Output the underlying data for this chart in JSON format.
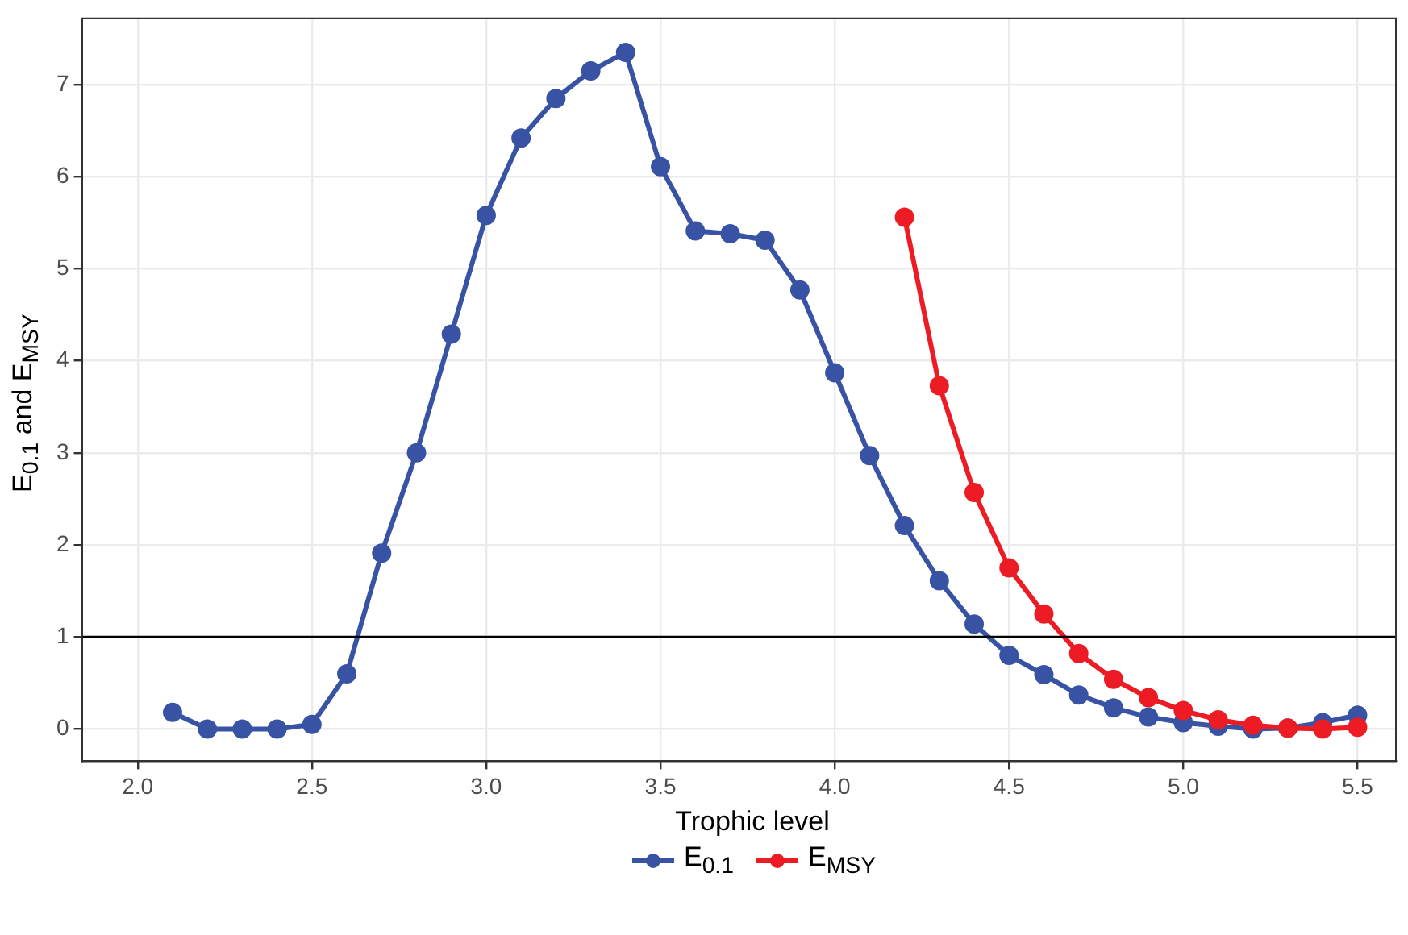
{
  "chart_data": {
    "type": "line",
    "xlabel": "Trophic level",
    "ylabel": "E$_{0.1}$ and E$_{MSY}$",
    "x": [
      2.1,
      2.2,
      2.3,
      2.4,
      2.5,
      2.6,
      2.7,
      2.8,
      2.9,
      3.0,
      3.1,
      3.2,
      3.3,
      3.4,
      3.5,
      3.6,
      3.7,
      3.8,
      3.9,
      4.0,
      4.1,
      4.2,
      4.3,
      4.4,
      4.5,
      4.6,
      4.7,
      4.8,
      4.9,
      5.0,
      5.1,
      5.2,
      5.3,
      5.4,
      5.5
    ],
    "series": [
      {
        "name": "E$_{0.1}$",
        "color": "#3953a4",
        "values": [
          0.18,
          0,
          0,
          0,
          0.05,
          0.6,
          1.91,
          3.0,
          4.29,
          5.58,
          6.42,
          6.85,
          7.15,
          7.35,
          6.11,
          5.41,
          5.38,
          5.31,
          4.77,
          3.87,
          2.97,
          2.21,
          1.61,
          1.14,
          0.8,
          0.59,
          0.37,
          0.23,
          0.13,
          0.07,
          0.03,
          0,
          0.01,
          0.07,
          0.15
        ]
      },
      {
        "name": "E$_{MSY}$",
        "color": "#ed1c24",
        "x": [
          4.2,
          4.3,
          4.4,
          4.5,
          4.6,
          4.7,
          4.8,
          4.9,
          5.0,
          5.1,
          5.2,
          5.3,
          5.4,
          5.5
        ],
        "values": [
          5.56,
          3.73,
          2.57,
          1.75,
          1.25,
          0.82,
          0.54,
          0.34,
          0.2,
          0.1,
          0.04,
          0.01,
          0,
          0.02
        ]
      }
    ],
    "xlim": [
      1.84,
      5.61
    ],
    "ylim": [
      -0.35,
      7.72
    ],
    "xticks": [
      {
        "value": 2,
        "label": "2.0"
      },
      2.5,
      {
        "value": 3,
        "label": "3.0"
      },
      3.5,
      {
        "value": 4,
        "label": "4.0"
      },
      4.5,
      {
        "value": 5,
        "label": "5.0"
      },
      5.5
    ],
    "yticks": [
      0,
      1,
      2,
      3,
      4,
      5,
      6,
      7
    ],
    "ref_lines": [
      {
        "axis": "y",
        "value": 1,
        "color": "#000000"
      }
    ],
    "grid": true,
    "legend": "bottom",
    "marker": "circle",
    "line_style": "solid"
  }
}
